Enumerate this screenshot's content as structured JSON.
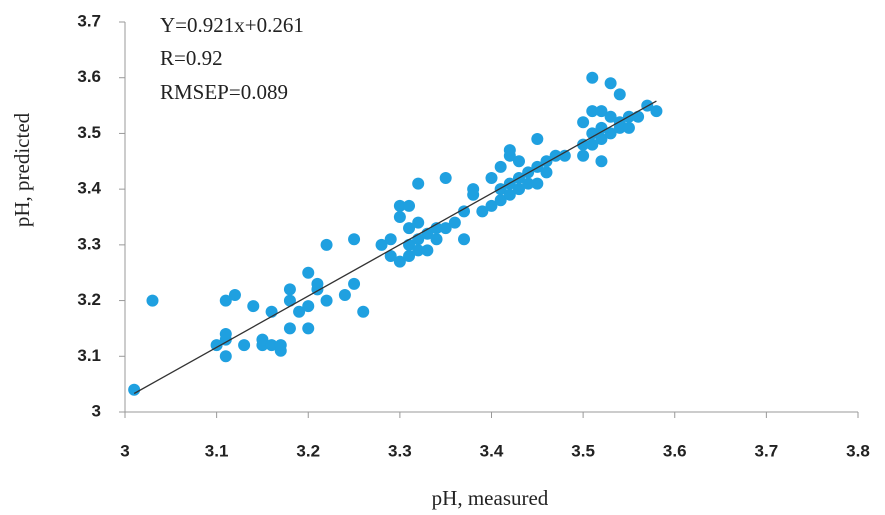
{
  "chart_data": {
    "type": "scatter",
    "x_label": "pH, measured",
    "y_label": "pH, predicted",
    "annotations": [
      "Y=0.921x+0.261",
      "R=0.92",
      "RMSEP=0.089"
    ],
    "color": "#1fa0e0",
    "x": [
      3.01,
      3.03,
      3.1,
      3.11,
      3.11,
      3.11,
      3.11,
      3.12,
      3.13,
      3.14,
      3.15,
      3.15,
      3.16,
      3.16,
      3.17,
      3.17,
      3.18,
      3.18,
      3.18,
      3.19,
      3.2,
      3.2,
      3.2,
      3.21,
      3.21,
      3.22,
      3.22,
      3.24,
      3.25,
      3.25,
      3.26,
      3.28,
      3.29,
      3.29,
      3.3,
      3.3,
      3.3,
      3.31,
      3.31,
      3.31,
      3.31,
      3.32,
      3.32,
      3.32,
      3.32,
      3.33,
      3.33,
      3.34,
      3.34,
      3.35,
      3.35,
      3.36,
      3.37,
      3.37,
      3.38,
      3.38,
      3.39,
      3.4,
      3.4,
      3.41,
      3.41,
      3.41,
      3.42,
      3.42,
      3.42,
      3.42,
      3.43,
      3.43,
      3.43,
      3.44,
      3.44,
      3.45,
      3.45,
      3.45,
      3.46,
      3.46,
      3.47,
      3.48,
      3.5,
      3.5,
      3.5,
      3.51,
      3.51,
      3.51,
      3.51,
      3.52,
      3.52,
      3.52,
      3.52,
      3.53,
      3.53,
      3.53,
      3.54,
      3.54,
      3.54,
      3.55,
      3.55,
      3.56,
      3.57,
      3.58
    ],
    "values": [
      3.04,
      3.2,
      3.12,
      3.1,
      3.13,
      3.14,
      3.2,
      3.21,
      3.12,
      3.19,
      3.12,
      3.13,
      3.12,
      3.18,
      3.11,
      3.12,
      3.15,
      3.2,
      3.22,
      3.18,
      3.15,
      3.19,
      3.25,
      3.22,
      3.23,
      3.2,
      3.3,
      3.21,
      3.23,
      3.31,
      3.18,
      3.3,
      3.28,
      3.31,
      3.27,
      3.35,
      3.37,
      3.28,
      3.3,
      3.33,
      3.37,
      3.29,
      3.31,
      3.34,
      3.41,
      3.29,
      3.32,
      3.31,
      3.33,
      3.33,
      3.42,
      3.34,
      3.31,
      3.36,
      3.39,
      3.4,
      3.36,
      3.37,
      3.42,
      3.38,
      3.4,
      3.44,
      3.39,
      3.41,
      3.46,
      3.47,
      3.4,
      3.42,
      3.45,
      3.41,
      3.43,
      3.41,
      3.44,
      3.49,
      3.43,
      3.45,
      3.46,
      3.46,
      3.46,
      3.48,
      3.52,
      3.48,
      3.5,
      3.54,
      3.6,
      3.45,
      3.49,
      3.51,
      3.54,
      3.5,
      3.53,
      3.59,
      3.51,
      3.52,
      3.57,
      3.51,
      3.53,
      3.53,
      3.55,
      3.54
    ],
    "trendline": {
      "slope": 0.921,
      "intercept": 0.261,
      "x": [
        3.01,
        3.58
      ],
      "color": "#333333"
    },
    "xlim": [
      3,
      3.8
    ],
    "xticks": [
      3,
      3.1,
      3.2,
      3.3,
      3.4,
      3.5,
      3.6,
      3.7,
      3.8
    ],
    "ylim": [
      3,
      3.7
    ],
    "yticks": [
      3,
      3.1,
      3.2,
      3.3,
      3.4,
      3.5,
      3.6,
      3.7
    ]
  }
}
